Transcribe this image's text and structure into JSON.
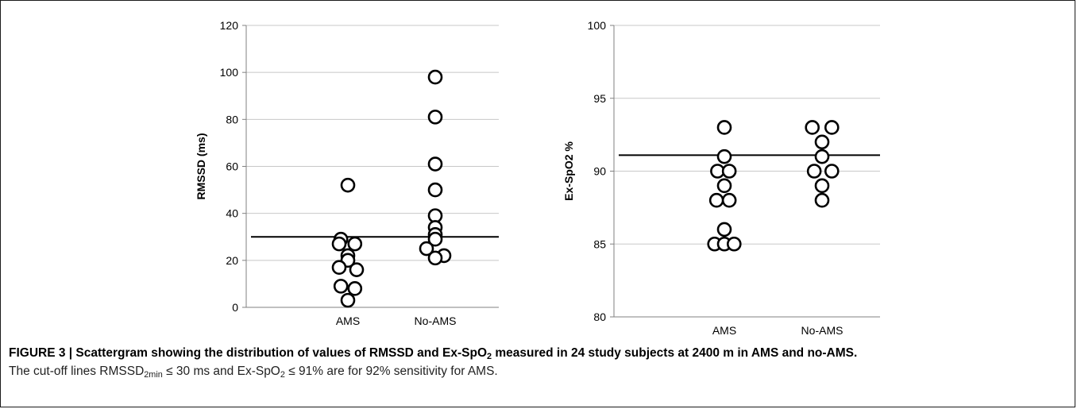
{
  "chart_data": [
    {
      "type": "scatter",
      "ylabel": "RMSSD (ms)",
      "xlabel": "",
      "categories": [
        "AMS",
        "No-AMS"
      ],
      "ylim": [
        0,
        120
      ],
      "yticks": [
        0,
        20,
        40,
        60,
        80,
        100,
        120
      ],
      "grid": true,
      "cutoff": 30,
      "series": [
        {
          "category": "AMS",
          "points": [
            [
              0,
              52
            ],
            [
              -0.08,
              29
            ],
            [
              0.08,
              27
            ],
            [
              -0.1,
              27
            ],
            [
              0,
              22
            ],
            [
              0,
              20
            ],
            [
              -0.1,
              17
            ],
            [
              0.1,
              16
            ],
            [
              -0.08,
              9
            ],
            [
              0.08,
              8
            ],
            [
              0,
              3
            ]
          ]
        },
        {
          "category": "No-AMS",
          "points": [
            [
              0,
              98
            ],
            [
              0,
              81
            ],
            [
              0,
              61
            ],
            [
              0,
              50
            ],
            [
              0,
              39
            ],
            [
              0,
              34
            ],
            [
              0,
              31
            ],
            [
              0,
              29
            ],
            [
              -0.1,
              25
            ],
            [
              0.1,
              22
            ],
            [
              0,
              21
            ]
          ]
        }
      ]
    },
    {
      "type": "scatter",
      "ylabel": "Ex-SpO2 %",
      "xlabel": "",
      "categories": [
        "AMS",
        "No-AMS"
      ],
      "ylim": [
        80,
        100
      ],
      "yticks": [
        80,
        85,
        90,
        95,
        100
      ],
      "grid": true,
      "cutoff": 91.1,
      "series": [
        {
          "category": "AMS",
          "points": [
            [
              0,
              93
            ],
            [
              0,
              91
            ],
            [
              -0.07,
              90
            ],
            [
              0.05,
              90
            ],
            [
              0,
              89
            ],
            [
              -0.08,
              88
            ],
            [
              0.05,
              88
            ],
            [
              0,
              86
            ],
            [
              -0.1,
              85
            ],
            [
              0,
              85
            ],
            [
              0.1,
              85
            ]
          ]
        },
        {
          "category": "No-AMS",
          "points": [
            [
              -0.1,
              93
            ],
            [
              0.1,
              93
            ],
            [
              0,
              92
            ],
            [
              0,
              91
            ],
            [
              -0.08,
              90
            ],
            [
              0.1,
              90
            ],
            [
              0,
              89
            ],
            [
              0,
              88
            ]
          ]
        }
      ]
    }
  ],
  "caption": {
    "title_parts": [
      "FIGURE 3 | Scattergram showing the distribution of values of RMSSD and Ex-SpO",
      "2",
      " measured in 24 study subjects at 2400 m in AMS and no-AMS."
    ],
    "note_parts": [
      "The cut-off lines RMSSD",
      "2min",
      " ≤ 30 ms and Ex-SpO",
      "2",
      " ≤ 91% are for 92% sensitivity for AMS."
    ]
  }
}
